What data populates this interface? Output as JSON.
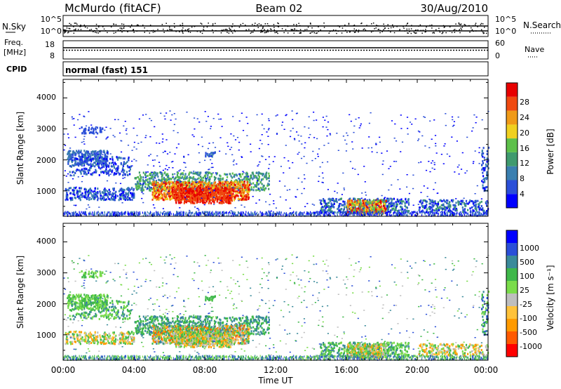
{
  "header": {
    "station": "McMurdo (fitACF)",
    "beam": "Beam 02",
    "date": "30/Aug/2010"
  },
  "strips": {
    "nsky_label": "N.Sky",
    "nsky_ticks": [
      "10^5",
      "10^0"
    ],
    "nsearch_label": "N.Search",
    "nsearch_ticks": [
      "10^5",
      "10^0"
    ],
    "freq_label_line1": "Freq.",
    "freq_label_line2": "[MHz]",
    "freq_ticks": [
      "18",
      "8"
    ],
    "nave_label": "Nave",
    "nave_ticks": [
      "60",
      "0"
    ],
    "cpid_label": "CPID",
    "cpid_value": "normal (fast) 151"
  },
  "colors": {
    "power": [
      "#0000ff",
      "#2b4fd8",
      "#3a7fb0",
      "#3f9a6e",
      "#5dc04a",
      "#f0d020",
      "#f09a18",
      "#f04a10",
      "#e80000"
    ],
    "velocity": [
      "#ff0000",
      "#ff5a00",
      "#ff9a00",
      "#ffc23a",
      "#bebebe",
      "#7adc4a",
      "#3fb84a",
      "#3a8a9a",
      "#2b4fd8",
      "#0000ff"
    ]
  },
  "chart_data": [
    {
      "type": "heatmap",
      "panel": "power",
      "ylabel": "Slant Range [km]",
      "yticks": [
        "1000",
        "2000",
        "3000",
        "4000"
      ],
      "ylim": [
        180,
        4600
      ],
      "xlim": [
        "00:00",
        "24:00"
      ],
      "xticks": [
        "00:00",
        "04:00",
        "08:00",
        "12:00",
        "16:00",
        "20:00",
        "00:00"
      ],
      "colorbar_label": "Power [dB]",
      "colorbar_ticks": [
        "4",
        "8",
        "12",
        "16",
        "20",
        "24",
        "28"
      ],
      "colorbar_range": [
        0,
        32
      ]
    },
    {
      "type": "heatmap",
      "panel": "velocity",
      "ylabel": "Slant Range [km]",
      "yticks": [
        "1000",
        "2000",
        "3000",
        "4000"
      ],
      "ylim": [
        180,
        4600
      ],
      "xlim": [
        "00:00",
        "24:00"
      ],
      "xticks": [
        "00:00",
        "04:00",
        "08:00",
        "12:00",
        "16:00",
        "20:00",
        "00:00"
      ],
      "xlabel": "Time UT",
      "colorbar_label": "Velocity [m s⁻¹]",
      "colorbar_ticks": [
        "1000",
        "500",
        "100",
        "25",
        "-25",
        "-100",
        "-500",
        "-1000"
      ]
    }
  ]
}
